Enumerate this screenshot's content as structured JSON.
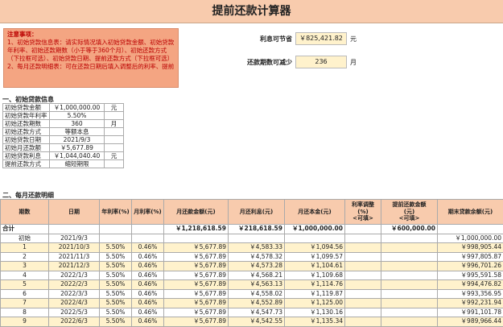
{
  "header": {
    "title": "提前还款计算器"
  },
  "notes": {
    "title": "注意事项：",
    "lines": [
      "1、初始贷款信息表：请实际情况填入初始贷款金额、初始贷款年利率、初始还款期数（小于等于360个月）、初始还款方式（下拉框可选）、初始贷款日期、提前还款方式（下拉框可选）",
      "2、每月还款明细表：可在还款日期后填入调整后的利率、提前"
    ]
  },
  "summary": {
    "rows": [
      {
        "label": "利息可节省",
        "value": "￥825,421.82",
        "unit": "元"
      },
      {
        "label": "还款期数可减少",
        "value": "236",
        "unit": "月"
      }
    ]
  },
  "loan_info": {
    "title": "一、初始贷款信息",
    "rows": [
      [
        "初始贷款金额",
        "￥1,000,000.00",
        "元"
      ],
      [
        "初始贷款年利率",
        "5.50%"
      ],
      [
        "初始还款期数",
        "360",
        "月"
      ],
      [
        "初始还款方式",
        "等额本息"
      ],
      [
        "初始贷款日期",
        "2021/9/3"
      ],
      [
        "初始月还款额",
        "￥5,677.89"
      ],
      [
        "初始贷款利息",
        "￥1,044,040.40",
        "元"
      ],
      [
        "提前还款方式",
        "缩短期限"
      ]
    ]
  },
  "schedule": {
    "title": "二、每月还款明细",
    "columns": [
      "期数",
      "日期",
      "年利率(%)",
      "月利率(%)",
      "月还款金额(元)",
      "月还利息(元)",
      "月还本金(元)",
      "利率调整\n(%)\n<可填>",
      "提前还款金额\n(元)\n<可填>",
      "期末贷款余额(元)"
    ],
    "rows": [
      [
        "合计",
        null,
        null,
        null,
        "￥1,218,618.59",
        "￥218,618.59",
        "￥1,000,000.00",
        null,
        "￥600,000.00",
        null
      ],
      [
        "初始",
        "2021/9/3",
        null,
        null,
        null,
        null,
        null,
        null,
        null,
        "￥1,000,000.00"
      ],
      [
        "1",
        "2021/10/3",
        "5.50%",
        "0.46%",
        "￥5,677.89",
        "￥4,583.33",
        "￥1,094.56",
        null,
        null,
        "￥998,905.44"
      ],
      [
        "2",
        "2021/11/3",
        "5.50%",
        "0.46%",
        "￥5,677.89",
        "￥4,578.32",
        "￥1,099.57",
        null,
        null,
        "￥997,805.87"
      ],
      [
        "3",
        "2021/12/3",
        "5.50%",
        "0.46%",
        "￥5,677.89",
        "￥4,573.28",
        "￥1,104.61",
        null,
        null,
        "￥996,701.26"
      ],
      [
        "4",
        "2022/1/3",
        "5.50%",
        "0.46%",
        "￥5,677.89",
        "￥4,568.21",
        "￥1,109.68",
        null,
        null,
        "￥995,591.58"
      ],
      [
        "5",
        "2022/2/3",
        "5.50%",
        "0.46%",
        "￥5,677.89",
        "￥4,563.13",
        "￥1,114.76",
        null,
        null,
        "￥994,476.82"
      ],
      [
        "6",
        "2022/3/3",
        "5.50%",
        "0.46%",
        "￥5,677.89",
        "￥4,558.02",
        "￥1,119.87",
        null,
        null,
        "￥993,356.95"
      ],
      [
        "7",
        "2022/4/3",
        "5.50%",
        "0.46%",
        "￥5,677.89",
        "￥4,552.89",
        "￥1,125.00",
        null,
        null,
        "￥992,231.94"
      ],
      [
        "8",
        "2022/5/3",
        "5.50%",
        "0.46%",
        "￥5,677.89",
        "￥4,547.73",
        "￥1,130.16",
        null,
        null,
        "￥991,101.78"
      ],
      [
        "9",
        "2022/6/3",
        "5.50%",
        "0.46%",
        "￥5,677.89",
        "￥4,542.55",
        "￥1,135.34",
        null,
        null,
        "￥989,966.44"
      ]
    ]
  }
}
